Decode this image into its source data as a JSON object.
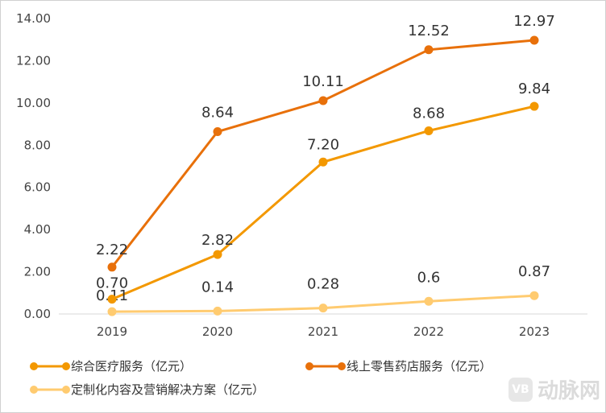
{
  "chart_data": {
    "type": "line",
    "categories": [
      "2019",
      "2020",
      "2021",
      "2022",
      "2023"
    ],
    "ylim": [
      0,
      14
    ],
    "yticks": [
      "0.00",
      "2.00",
      "4.00",
      "6.00",
      "8.00",
      "10.00",
      "12.00",
      "14.00"
    ],
    "grid": false,
    "legend_placement": "bottom",
    "series": [
      {
        "name": "综合医疗服务（亿元）",
        "color": "#F39800",
        "values": [
          0.7,
          2.82,
          7.2,
          8.68,
          9.84
        ],
        "labels": [
          "0.70",
          "2.82",
          "7.20",
          "8.68",
          "9.84"
        ]
      },
      {
        "name": "线上零售药店服务（亿元）",
        "color": "#E8700A",
        "values": [
          2.22,
          8.64,
          10.11,
          12.52,
          12.97
        ],
        "labels": [
          "2.22",
          "8.64",
          "10.11",
          "12.52",
          "12.97"
        ]
      },
      {
        "name": "定制化内容及营销解决方案（亿元）",
        "color": "#FFCB70",
        "values": [
          0.11,
          0.14,
          0.28,
          0.6,
          0.87
        ],
        "labels": [
          "0.11",
          "0.14",
          "0.28",
          "0.6",
          "0.87"
        ]
      }
    ]
  },
  "watermark": {
    "badge": "VB",
    "text": "动脉网"
  }
}
